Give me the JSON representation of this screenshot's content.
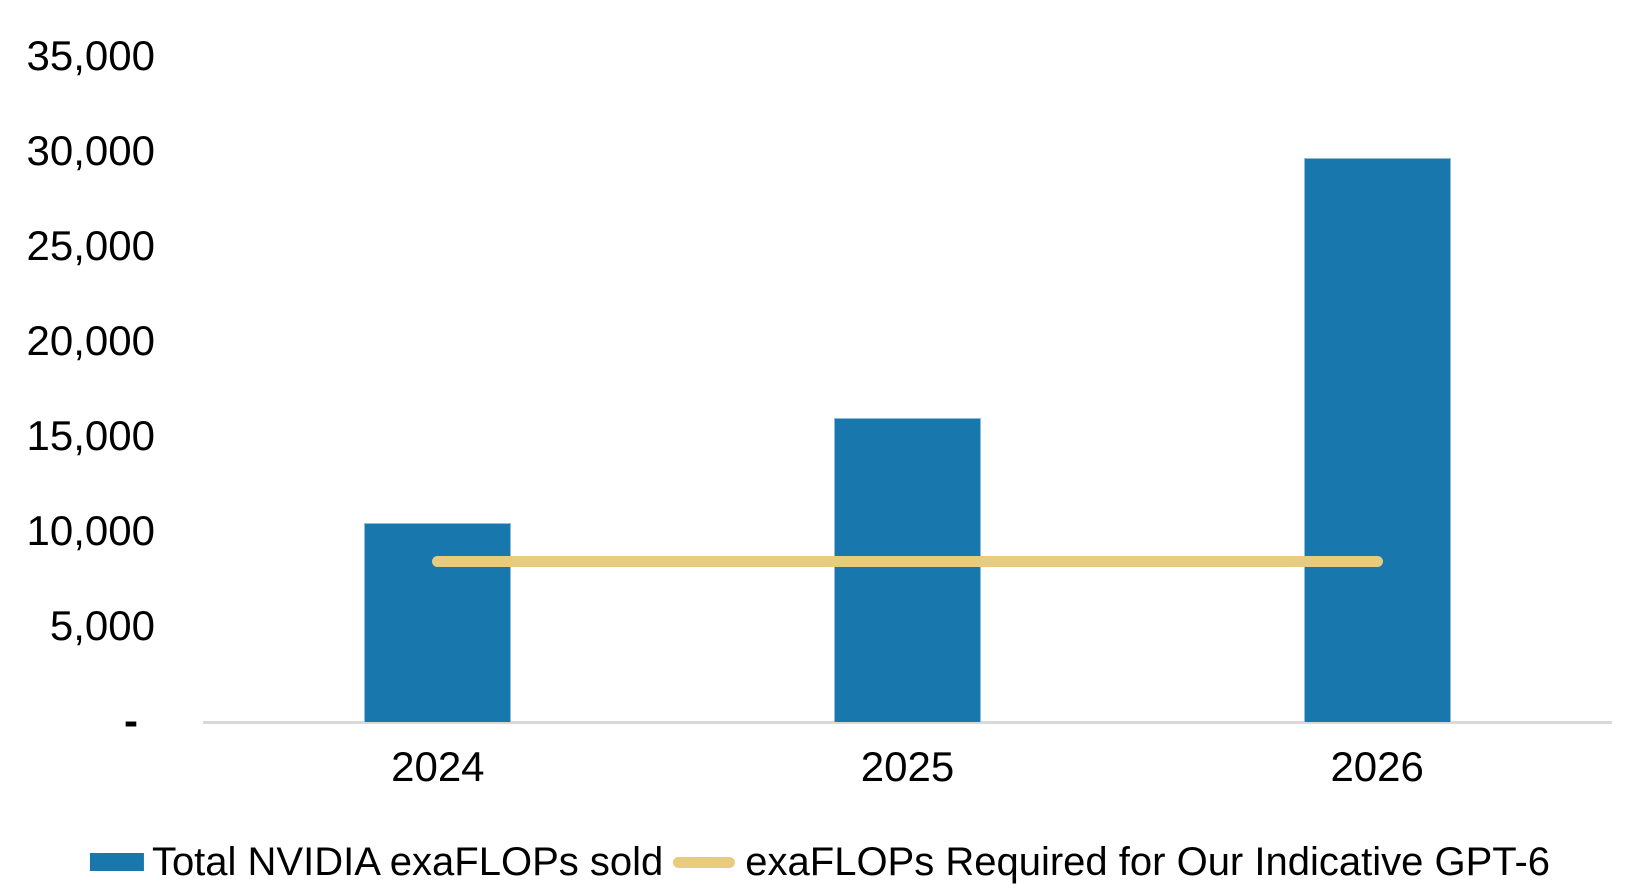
{
  "chart_data": {
    "type": "bar",
    "categories": [
      "2024",
      "2025",
      "2026"
    ],
    "series": [
      {
        "name": "Total NVIDIA exaFLOPs sold",
        "type": "bar",
        "values": [
          10500,
          16000,
          29700
        ],
        "color": "#1878AE"
      },
      {
        "name": "exaFLOPs Required for Our Indicative GPT-6",
        "type": "line",
        "values": [
          8450,
          8450,
          8450
        ],
        "color": "#E8CC7D"
      }
    ],
    "title": "",
    "xlabel": "",
    "ylabel": "",
    "ylim": [
      0,
      35000
    ],
    "y_ticks": [
      {
        "value": 35000,
        "label": "35,000"
      },
      {
        "value": 30000,
        "label": "30,000"
      },
      {
        "value": 25000,
        "label": "25,000"
      },
      {
        "value": 20000,
        "label": "20,000"
      },
      {
        "value": 15000,
        "label": "15,000"
      },
      {
        "value": 10000,
        "label": "10,000"
      },
      {
        "value": 5000,
        "label": "5,000"
      },
      {
        "value": 0,
        "label": "-"
      }
    ],
    "grid": false,
    "legend_position": "bottom"
  },
  "colors": {
    "bar": "#1878AE",
    "bar_edge": "#8FBCDB",
    "line": "#E8CC7D",
    "axis_line": "#D9D9D9",
    "text": "#000000"
  },
  "legend": {
    "items": [
      {
        "label": "Total NVIDIA exaFLOPs sold",
        "swatch": "bar"
      },
      {
        "label": "exaFLOPs Required for Our Indicative GPT-6",
        "swatch": "line"
      }
    ]
  }
}
